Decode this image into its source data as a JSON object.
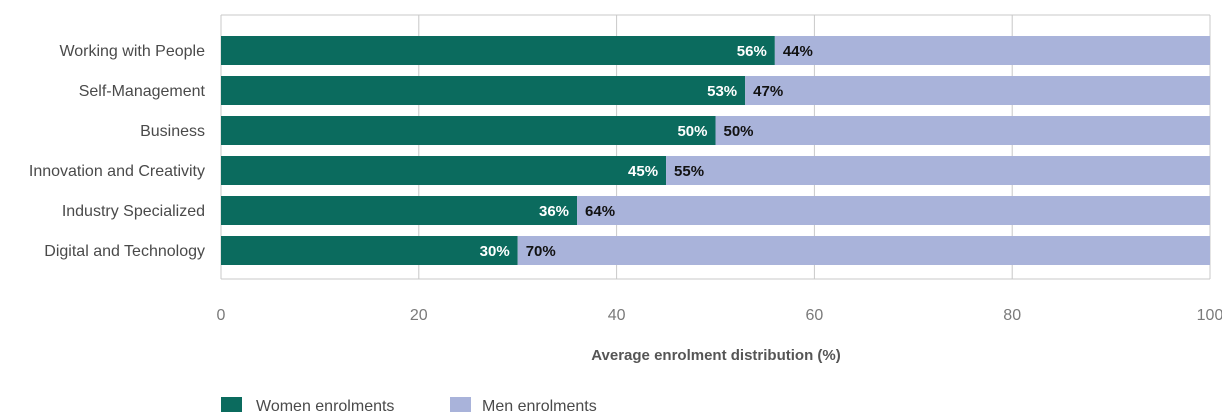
{
  "chart_data": {
    "type": "bar",
    "orientation": "horizontal",
    "stacked": true,
    "categories": [
      "Working with People",
      "Self-Management",
      "Business",
      "Innovation and Creativity",
      "Industry Specialized",
      "Digital and Technology"
    ],
    "series": [
      {
        "name": "Women enrolments",
        "values": [
          56,
          53,
          50,
          45,
          36,
          30
        ],
        "color": "#0b6b5e",
        "label_color": "#ffffff"
      },
      {
        "name": "Men enrolments",
        "values": [
          44,
          47,
          50,
          55,
          64,
          70
        ],
        "color": "#a9b3da",
        "label_color": "#111111"
      }
    ],
    "value_suffix": "%",
    "xlabel": "Average enrolment distribution (%)",
    "ylabel": "",
    "xlim": [
      0,
      100
    ],
    "xticks": [
      0,
      20,
      40,
      60,
      80,
      100
    ],
    "grid": true,
    "legend_position": "bottom-left"
  }
}
